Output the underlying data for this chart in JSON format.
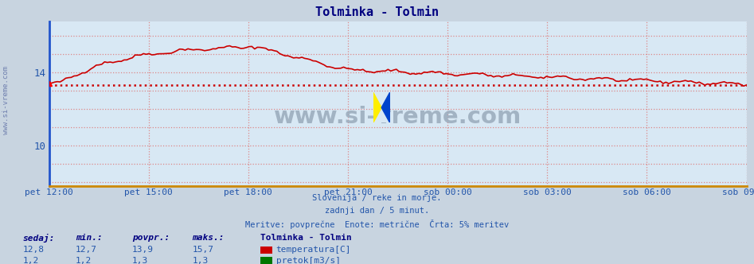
{
  "title": "Tolminka - Tolmin",
  "title_color": "#000080",
  "background_color": "#c8d4e0",
  "plot_bg_color": "#d8e8f4",
  "grid_color": "#dd8888",
  "tick_color": "#2255aa",
  "yticks": [
    10,
    14
  ],
  "ylim": [
    7.8,
    16.8
  ],
  "xtick_labels": [
    "pet 12:00",
    "pet 15:00",
    "pet 18:00",
    "pet 21:00",
    "sob 00:00",
    "sob 03:00",
    "sob 06:00",
    "sob 09:00"
  ],
  "xtick_positions": [
    0,
    3,
    6,
    9,
    12,
    15,
    18,
    21
  ],
  "avg_line_value": 13.3,
  "avg_line_color": "#cc0000",
  "temp_color": "#cc0000",
  "pretok_color": "#007700",
  "legend_station": "Tolminka - Tolmin",
  "legend_temp": "temperatura[C]",
  "legend_pretok": "pretok[m3/s]",
  "stats_headers": [
    "sedaj:",
    "min.:",
    "povpr.:",
    "maks.:"
  ],
  "stats_temp": [
    "12,8",
    "12,7",
    "13,9",
    "15,7"
  ],
  "stats_pretok": [
    "1,2",
    "1,2",
    "1,3",
    "1,3"
  ],
  "footer_lines": [
    "Slovenija / reke in morje.",
    "zadnji dan / 5 minut.",
    "Meritve: povprečne  Enote: metrične  Črta: 5% meritev"
  ],
  "footer_color": "#2255aa",
  "watermark_text": "www.si-vreme.com",
  "watermark_color": "#99aabb",
  "sidebar_text": "www.si-vreme.com",
  "sidebar_color": "#6677aa",
  "left_spine_color": "#2255cc",
  "bottom_spine_color": "#cc8800",
  "icon_yellow": "#ffee00",
  "icon_blue": "#0044cc"
}
